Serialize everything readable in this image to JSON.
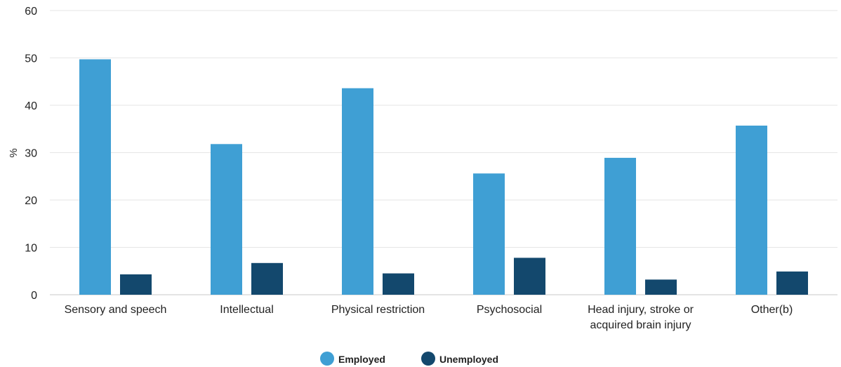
{
  "chart_data": {
    "type": "bar",
    "title": "",
    "xlabel": "",
    "ylabel": "%",
    "ylim": [
      0,
      60
    ],
    "yticks": [
      0,
      10,
      20,
      30,
      40,
      50,
      60
    ],
    "grid": true,
    "legend_position": "bottom",
    "categories": [
      [
        "Sensory and speech"
      ],
      [
        "Intellectual"
      ],
      [
        "Physical restriction"
      ],
      [
        "Psychosocial"
      ],
      [
        "Head injury, stroke or",
        "acquired brain injury"
      ],
      [
        "Other(b)"
      ]
    ],
    "series": [
      {
        "name": "Employed",
        "color": "#3f9fd4",
        "values": [
          49.7,
          31.8,
          43.6,
          25.6,
          28.9,
          35.7
        ]
      },
      {
        "name": "Unemployed",
        "color": "#13486d",
        "values": [
          4.3,
          6.7,
          4.5,
          7.8,
          3.2,
          4.9
        ]
      }
    ]
  }
}
